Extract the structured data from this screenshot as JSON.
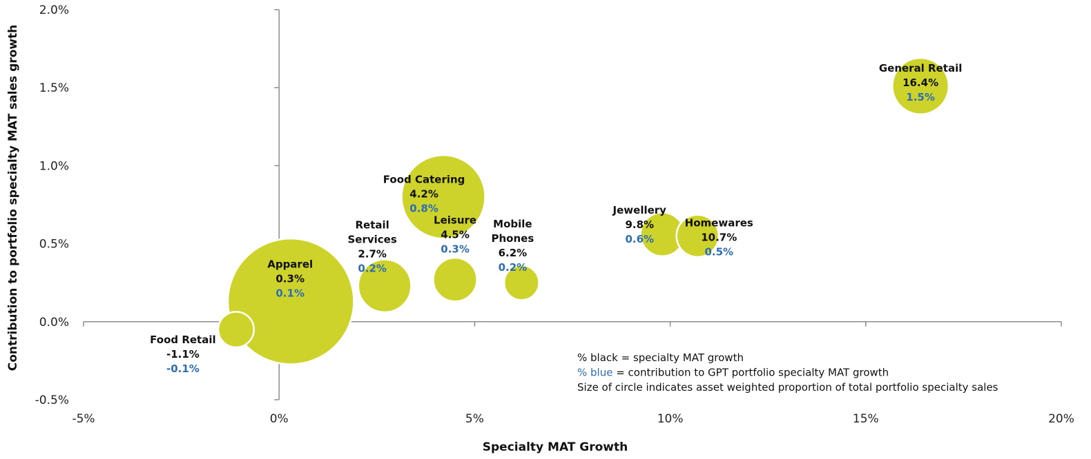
{
  "chart_data": {
    "type": "bubble",
    "title": "",
    "xlabel": "Specialty MAT Growth",
    "ylabel": "Contribution to portfolio specialty MAT sales growth",
    "xlim": [
      -5,
      20
    ],
    "ylim": [
      -0.5,
      2.0
    ],
    "x_ticks": [
      "-5%",
      "0%",
      "5%",
      "10%",
      "15%",
      "20%"
    ],
    "y_ticks": [
      "-0.5%",
      "0.0%",
      "0.5%",
      "1.0%",
      "1.5%",
      "2.0%"
    ],
    "grid": false,
    "colors": {
      "bubble": "#cdd32a",
      "black_value": "#111111",
      "blue_value": "#2e6db0"
    },
    "points": [
      {
        "name": "Food Retail",
        "name_lines": [
          "Food Retail"
        ],
        "x": -1.1,
        "y": -0.05,
        "size": 1.0,
        "growth_label": "-1.1%",
        "contribution_label": "-0.1%"
      },
      {
        "name": "Apparel",
        "name_lines": [
          "Apparel"
        ],
        "x": 0.3,
        "y": 0.13,
        "size": 12.5,
        "growth_label": "0.3%",
        "contribution_label": "0.1%"
      },
      {
        "name": "Retail Services",
        "name_lines": [
          "Retail",
          "Services"
        ],
        "x": 2.7,
        "y": 0.23,
        "size": 2.2,
        "growth_label": "2.7%",
        "contribution_label": "0.2%"
      },
      {
        "name": "Food Catering",
        "name_lines": [
          "Food Catering"
        ],
        "x": 4.2,
        "y": 0.8,
        "size": 5.5,
        "growth_label": "4.2%",
        "contribution_label": "0.8%"
      },
      {
        "name": "Leisure",
        "name_lines": [
          "Leisure"
        ],
        "x": 4.5,
        "y": 0.27,
        "size": 1.5,
        "growth_label": "4.5%",
        "contribution_label": "0.3%"
      },
      {
        "name": "Mobile Phones",
        "name_lines": [
          "Mobile",
          "Phones"
        ],
        "x": 6.2,
        "y": 0.25,
        "size": 0.95,
        "growth_label": "6.2%",
        "contribution_label": "0.2%"
      },
      {
        "name": "Jewellery",
        "name_lines": [
          "Jewellery"
        ],
        "x": 9.8,
        "y": 0.56,
        "size": 1.5,
        "growth_label": "9.8%",
        "contribution_label": "0.6%"
      },
      {
        "name": "Homewares",
        "name_lines": [
          "Homewares"
        ],
        "x": 10.7,
        "y": 0.55,
        "size": 1.4,
        "growth_label": "10.7%",
        "contribution_label": "0.5%"
      },
      {
        "name": "General Retail",
        "name_lines": [
          "General Retail"
        ],
        "x": 16.4,
        "y": 1.51,
        "size": 2.5,
        "growth_label": "16.4%",
        "contribution_label": "1.5%"
      }
    ],
    "legend": {
      "placement": "bottom-right",
      "line1": "% black = specialty MAT growth",
      "line2_colored": "% blue",
      "line2_rest": " = contribution to GPT portfolio specialty MAT growth",
      "line3": "Size of circle indicates asset weighted proportion of total portfolio specialty sales"
    }
  }
}
